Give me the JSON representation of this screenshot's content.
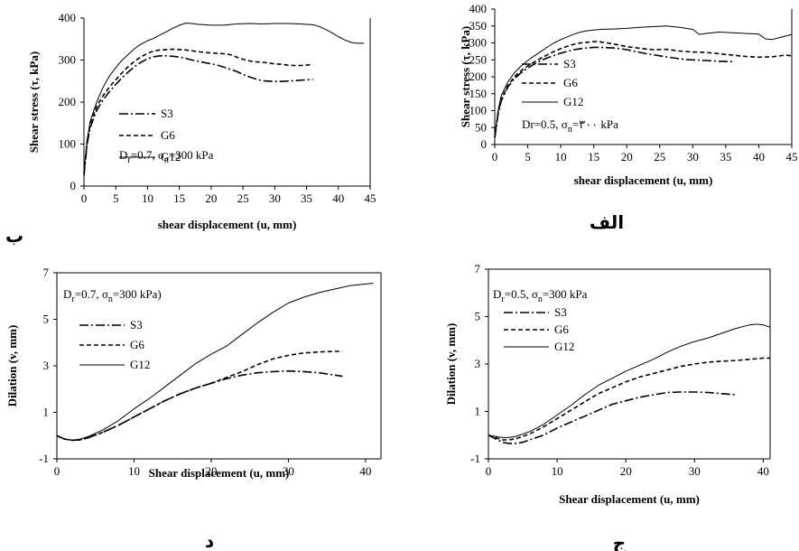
{
  "figure": {
    "panel_labels": [
      "ب",
      "الف",
      "د",
      "ج"
    ]
  },
  "chart_data": [
    {
      "type": "line",
      "panel_label": "ب",
      "xlabel": "shear displacement (u, mm)",
      "ylabel": "Shear stress (τ, kPa)",
      "xlim": [
        0,
        45
      ],
      "ylim": [
        0,
        400
      ],
      "xticks": [
        "0",
        "5",
        "10",
        "15",
        "20",
        "25",
        "30",
        "35",
        "40",
        "45"
      ],
      "yticks": [
        "0",
        "100",
        "200",
        "300",
        "400"
      ],
      "annotation_parts": [
        "D",
        "r",
        "=0.7, σ",
        "n",
        "=300 kPa"
      ],
      "legend": [
        "S3",
        "G6",
        "G12"
      ],
      "series": [
        {
          "name": "S3",
          "style": "dashdot",
          "x": [
            0,
            0.5,
            1,
            2,
            3,
            4,
            5,
            6,
            7,
            8,
            9,
            10,
            11,
            12,
            13,
            14,
            15,
            16,
            17,
            18,
            19,
            20,
            21,
            22,
            23,
            24,
            25,
            26,
            27,
            28,
            29,
            30,
            31,
            32,
            33,
            34,
            35,
            36
          ],
          "y": [
            25,
            100,
            140,
            180,
            205,
            225,
            242,
            258,
            272,
            285,
            295,
            303,
            308,
            310,
            310,
            309,
            307,
            304,
            300,
            297,
            294,
            291,
            288,
            283,
            278,
            273,
            266,
            260,
            255,
            251,
            250,
            249,
            249,
            250,
            251,
            252,
            253,
            254
          ]
        },
        {
          "name": "G6",
          "style": "dashed",
          "x": [
            0,
            0.5,
            1,
            2,
            3,
            4,
            5,
            6,
            7,
            8,
            9,
            10,
            11,
            12,
            13,
            14,
            15,
            16,
            17,
            18,
            19,
            20,
            21,
            22,
            23,
            24,
            25,
            26,
            27,
            28,
            29,
            30,
            31,
            32,
            33,
            34,
            35,
            36
          ],
          "y": [
            30,
            105,
            148,
            190,
            215,
            236,
            253,
            270,
            285,
            298,
            308,
            316,
            322,
            324,
            325,
            326,
            325,
            324,
            322,
            320,
            318,
            317,
            316,
            315,
            313,
            307,
            302,
            298,
            296,
            295,
            293,
            291,
            290,
            288,
            287,
            287,
            288,
            290
          ]
        },
        {
          "name": "G12",
          "style": "solid",
          "x": [
            0,
            0.5,
            1,
            2,
            3,
            4,
            5,
            6,
            7,
            8,
            9,
            10,
            11,
            12,
            13,
            14,
            15,
            16,
            17,
            18,
            19,
            20,
            22,
            24,
            26,
            28,
            30,
            32,
            34,
            35,
            36,
            37,
            38,
            39,
            40,
            41,
            42,
            43,
            44
          ],
          "y": [
            35,
            110,
            155,
            200,
            235,
            262,
            282,
            300,
            314,
            328,
            338,
            346,
            352,
            360,
            368,
            376,
            383,
            388,
            387,
            385,
            384,
            383,
            383,
            386,
            387,
            386,
            387,
            387,
            386,
            385,
            384,
            380,
            373,
            365,
            356,
            348,
            342,
            340,
            340
          ]
        }
      ]
    },
    {
      "type": "line",
      "panel_label": "الف",
      "xlabel": "shear displacement (u, mm)",
      "ylabel": "Shear stress (τ, kPa)",
      "xlim": [
        0,
        45
      ],
      "ylim": [
        0,
        400
      ],
      "xticks": [
        "0",
        "5",
        "10",
        "15",
        "20",
        "25",
        "30",
        "35",
        "40",
        "45"
      ],
      "yticks": [
        "0",
        "50",
        "100",
        "150",
        "200",
        "250",
        "300",
        "350",
        "400"
      ],
      "annotation_parts": [
        "Dr=0.5, σ",
        "n",
        "=۳۰۰ kPa"
      ],
      "legend": [
        "S3",
        "G6",
        "G12"
      ],
      "series": [
        {
          "name": "S3",
          "style": "dashdot",
          "x": [
            0,
            0.5,
            1,
            2,
            3,
            4,
            5,
            6,
            7,
            8,
            9,
            10,
            11,
            12,
            13,
            14,
            15,
            16,
            17,
            18,
            19,
            20,
            21,
            22,
            23,
            24,
            25,
            26,
            27,
            28,
            29,
            30,
            31,
            32,
            33,
            34,
            35,
            36
          ],
          "y": [
            20,
            90,
            130,
            170,
            195,
            212,
            226,
            238,
            248,
            256,
            263,
            270,
            275,
            280,
            283,
            285,
            287,
            287,
            286,
            285,
            283,
            280,
            276,
            272,
            268,
            265,
            262,
            259,
            256,
            253,
            251,
            250,
            249,
            248,
            247,
            246,
            245,
            245
          ]
        },
        {
          "name": "G6",
          "style": "dashed",
          "x": [
            0,
            0.5,
            1,
            2,
            3,
            4,
            5,
            6,
            7,
            8,
            9,
            10,
            11,
            12,
            13,
            14,
            15,
            16,
            17,
            18,
            19,
            20,
            22,
            24,
            26,
            28,
            30,
            32,
            34,
            36,
            38,
            40,
            42,
            44,
            45
          ],
          "y": [
            22,
            95,
            135,
            175,
            200,
            218,
            232,
            244,
            255,
            265,
            275,
            283,
            290,
            296,
            300,
            302,
            304,
            303,
            300,
            297,
            293,
            289,
            284,
            280,
            281,
            276,
            273,
            272,
            268,
            264,
            260,
            258,
            259,
            264,
            262
          ]
        },
        {
          "name": "G12",
          "style": "solid",
          "x": [
            0,
            0.5,
            1,
            2,
            3,
            4,
            5,
            6,
            7,
            8,
            9,
            10,
            11,
            12,
            13,
            14,
            15,
            16,
            18,
            20,
            22,
            24,
            26,
            28,
            30,
            31,
            32,
            34,
            36,
            38,
            40,
            41,
            42,
            43,
            44,
            45
          ],
          "y": [
            25,
            100,
            145,
            185,
            212,
            232,
            248,
            262,
            275,
            288,
            300,
            310,
            318,
            326,
            332,
            336,
            338,
            340,
            341,
            343,
            346,
            348,
            350,
            346,
            340,
            325,
            328,
            332,
            330,
            328,
            326,
            312,
            310,
            315,
            320,
            325
          ]
        }
      ]
    },
    {
      "type": "line",
      "panel_label": "د",
      "xlabel": "Shear displacement (u, mm)",
      "ylabel": "Dilation (v, mm)",
      "xlim": [
        0,
        42
      ],
      "ylim": [
        -1,
        7
      ],
      "xticks": [
        "0",
        "10",
        "20",
        "30",
        "40"
      ],
      "yticks": [
        "-1",
        "1",
        "3",
        "5",
        "7"
      ],
      "annotation_parts": [
        "D",
        "r",
        "=0.7, σ",
        "n",
        "=300 kPa)"
      ],
      "legend": [
        "S3",
        "G6",
        "G12"
      ],
      "series": [
        {
          "name": "S3",
          "style": "dashdot",
          "x": [
            0,
            1,
            2,
            3,
            4,
            6,
            8,
            10,
            12,
            14,
            16,
            18,
            20,
            22,
            24,
            26,
            28,
            30,
            32,
            34,
            36,
            37
          ],
          "y": [
            0,
            -0.15,
            -0.2,
            -0.18,
            -0.1,
            0.15,
            0.45,
            0.8,
            1.15,
            1.5,
            1.8,
            2.05,
            2.25,
            2.45,
            2.6,
            2.7,
            2.75,
            2.78,
            2.75,
            2.7,
            2.6,
            2.55
          ]
        },
        {
          "name": "G6",
          "style": "dashed",
          "x": [
            0,
            1,
            2,
            3,
            4,
            6,
            8,
            10,
            12,
            14,
            16,
            18,
            20,
            22,
            24,
            26,
            28,
            30,
            32,
            34,
            36,
            37
          ],
          "y": [
            0,
            -0.15,
            -0.2,
            -0.18,
            -0.1,
            0.15,
            0.45,
            0.8,
            1.15,
            1.5,
            1.8,
            2.05,
            2.25,
            2.5,
            2.75,
            3.05,
            3.3,
            3.45,
            3.55,
            3.6,
            3.62,
            3.62
          ]
        },
        {
          "name": "G12",
          "style": "solid",
          "x": [
            0,
            1,
            2,
            3,
            4,
            6,
            8,
            10,
            12,
            14,
            16,
            18,
            20,
            22,
            24,
            26,
            28,
            30,
            32,
            34,
            36,
            38,
            40,
            41
          ],
          "y": [
            0,
            -0.15,
            -0.2,
            -0.15,
            -0.05,
            0.25,
            0.65,
            1.15,
            1.6,
            2.1,
            2.6,
            3.1,
            3.5,
            3.85,
            4.35,
            4.85,
            5.3,
            5.7,
            5.95,
            6.15,
            6.3,
            6.45,
            6.52,
            6.55
          ]
        }
      ]
    },
    {
      "type": "line",
      "panel_label": "ج",
      "xlabel": "Shear displacement (u, mm)",
      "ylabel": "Dilation (v, mm)",
      "xlim": [
        0,
        41
      ],
      "ylim": [
        -1,
        7
      ],
      "xticks": [
        "0",
        "10",
        "20",
        "30",
        "40"
      ],
      "yticks": [
        "-1",
        "1",
        "3",
        "5",
        "7"
      ],
      "annotation_parts": [
        "D",
        "r",
        "=0.5, σ",
        "n",
        "=300 kPa"
      ],
      "legend": [
        "S3",
        "G6",
        "G12"
      ],
      "series": [
        {
          "name": "S3",
          "style": "dashdot",
          "x": [
            0,
            1,
            2,
            3,
            4,
            5,
            6,
            8,
            10,
            12,
            14,
            16,
            18,
            20,
            22,
            24,
            26,
            28,
            30,
            32,
            34,
            36
          ],
          "y": [
            0,
            -0.15,
            -0.3,
            -0.35,
            -0.35,
            -0.3,
            -0.2,
            0,
            0.3,
            0.55,
            0.8,
            1.05,
            1.3,
            1.45,
            1.6,
            1.7,
            1.8,
            1.82,
            1.82,
            1.8,
            1.75,
            1.7
          ]
        },
        {
          "name": "G6",
          "style": "dashed",
          "x": [
            0,
            1,
            2,
            3,
            4,
            6,
            8,
            10,
            12,
            14,
            16,
            18,
            20,
            22,
            24,
            26,
            28,
            30,
            32,
            34,
            36,
            38,
            40,
            41
          ],
          "y": [
            0,
            -0.1,
            -0.2,
            -0.2,
            -0.15,
            0.05,
            0.35,
            0.7,
            1.05,
            1.4,
            1.75,
            2.0,
            2.25,
            2.45,
            2.6,
            2.75,
            2.9,
            3.0,
            3.08,
            3.12,
            3.15,
            3.2,
            3.25,
            3.25
          ]
        },
        {
          "name": "G12",
          "style": "solid",
          "x": [
            0,
            1,
            2,
            3,
            4,
            6,
            8,
            10,
            12,
            14,
            16,
            18,
            20,
            22,
            24,
            26,
            28,
            30,
            32,
            34,
            36,
            38,
            39,
            40,
            41
          ],
          "y": [
            0,
            -0.05,
            -0.1,
            -0.1,
            -0.05,
            0.15,
            0.45,
            0.85,
            1.25,
            1.7,
            2.1,
            2.4,
            2.7,
            2.95,
            3.2,
            3.5,
            3.75,
            3.95,
            4.1,
            4.3,
            4.5,
            4.65,
            4.68,
            4.65,
            4.55
          ]
        }
      ]
    }
  ]
}
